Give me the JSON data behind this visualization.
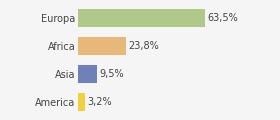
{
  "categories": [
    "Europa",
    "Africa",
    "Asia",
    "America"
  ],
  "values": [
    63.5,
    23.8,
    9.5,
    3.2
  ],
  "bar_colors": [
    "#b0c98a",
    "#e8b87a",
    "#7080b8",
    "#f0d040"
  ],
  "labels": [
    "63,5%",
    "23,8%",
    "9,5%",
    "3,2%"
  ],
  "background_color": "#f5f5f5",
  "xlim": [
    0,
    80
  ],
  "bar_height": 0.65,
  "label_fontsize": 7,
  "tick_fontsize": 7
}
